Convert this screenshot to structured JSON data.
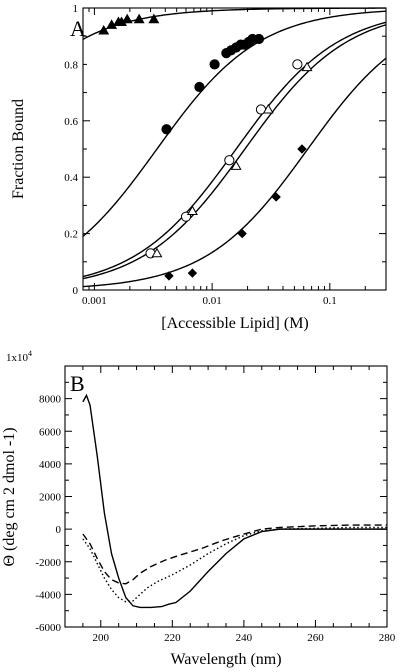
{
  "chart_data": [
    {
      "panel": "A",
      "type": "scatter",
      "xscale": "log",
      "xlim": [
        0.0008,
        0.3
      ],
      "ylim": [
        0,
        1
      ],
      "xlabel": "[Accessible Lipid] (M)",
      "ylabel": "Fraction Bound",
      "xticks": [
        {
          "value": 0.001,
          "label": "0.001"
        },
        {
          "value": 0.01,
          "label": "0.01"
        },
        {
          "value": 0.1,
          "label": "0.1"
        }
      ],
      "yticks": [
        {
          "value": 0,
          "label": "0"
        },
        {
          "value": 0.2,
          "label": "0.2"
        },
        {
          "value": 0.4,
          "label": "0.4"
        },
        {
          "value": 0.6,
          "label": "0.6"
        },
        {
          "value": 0.8,
          "label": "0.8"
        },
        {
          "value": 1,
          "label": "1"
        }
      ],
      "series": [
        {
          "marker": "triangle-filled",
          "points": [
            [
              0.0012,
              0.92
            ],
            [
              0.0014,
              0.94
            ],
            [
              0.0016,
              0.95
            ],
            [
              0.0017,
              0.95
            ],
            [
              0.0019,
              0.96
            ],
            [
              0.0024,
              0.96
            ],
            [
              0.0032,
              0.96
            ]
          ],
          "fit": {
            "kd": 0.0001,
            "scale": 1.0
          }
        },
        {
          "marker": "circle-filled",
          "points": [
            [
              0.0041,
              0.57
            ],
            [
              0.0078,
              0.72
            ],
            [
              0.0105,
              0.8
            ],
            [
              0.0132,
              0.84
            ],
            [
              0.0145,
              0.85
            ],
            [
              0.016,
              0.86
            ],
            [
              0.0175,
              0.87
            ],
            [
              0.019,
              0.87
            ],
            [
              0.0205,
              0.88
            ],
            [
              0.022,
              0.89
            ],
            [
              0.025,
              0.89
            ]
          ],
          "fit": {
            "kd": 0.0034,
            "scale": 1.0
          }
        },
        {
          "marker": "circle-open",
          "points": [
            [
              0.003,
              0.13
            ],
            [
              0.006,
              0.26
            ],
            [
              0.014,
              0.46
            ],
            [
              0.026,
              0.64
            ],
            [
              0.053,
              0.8
            ]
          ],
          "fit": {
            "kd": 0.016,
            "scale": 1.0
          }
        },
        {
          "marker": "triangle-open",
          "points": [
            [
              0.0034,
              0.13
            ],
            [
              0.0068,
              0.28
            ],
            [
              0.016,
              0.44
            ],
            [
              0.03,
              0.64
            ],
            [
              0.064,
              0.79
            ]
          ],
          "fit": {
            "kd": 0.019,
            "scale": 1.0
          }
        },
        {
          "marker": "diamond-filled",
          "points": [
            [
              0.0043,
              0.05
            ],
            [
              0.0068,
              0.06
            ],
            [
              0.018,
              0.2
            ],
            [
              0.035,
              0.33
            ],
            [
              0.058,
              0.5
            ]
          ],
          "fit": {
            "kd": 0.065,
            "scale": 1.0
          }
        }
      ]
    },
    {
      "panel": "B",
      "type": "line",
      "xlim": [
        190,
        280
      ],
      "ylim": [
        -6000,
        10000
      ],
      "xlabel": "Wavelength (nm)",
      "ylabel": "Θ (deg cm 2 dmol -1)",
      "y_exponent_label": "1x10",
      "y_exponent_power": "4",
      "xticks": [
        {
          "value": 200,
          "label": "200"
        },
        {
          "value": 220,
          "label": "220"
        },
        {
          "value": 240,
          "label": "240"
        },
        {
          "value": 260,
          "label": "260"
        },
        {
          "value": 280,
          "label": "280"
        }
      ],
      "yticks": [
        {
          "value": 8000,
          "label": "8000"
        },
        {
          "value": 6000,
          "label": "6000"
        },
        {
          "value": 4000,
          "label": "4000"
        },
        {
          "value": 2000,
          "label": "2000"
        },
        {
          "value": 0,
          "label": "0"
        },
        {
          "value": -2000,
          "label": "-2000"
        },
        {
          "value": -4000,
          "label": "-4000"
        },
        {
          "value": -6000,
          "label": "-6000"
        }
      ],
      "series": [
        {
          "style": "solid",
          "points": [
            [
              195,
              7800
            ],
            [
              196,
              8200
            ],
            [
              197,
              7600
            ],
            [
              199,
              4500
            ],
            [
              201,
              1000
            ],
            [
              203,
              -1500
            ],
            [
              205,
              -3000
            ],
            [
              207,
              -4200
            ],
            [
              209,
              -4700
            ],
            [
              211,
              -4800
            ],
            [
              214,
              -4800
            ],
            [
              217,
              -4750
            ],
            [
              219,
              -4600
            ],
            [
              221,
              -4500
            ],
            [
              225,
              -3800
            ],
            [
              230,
              -2600
            ],
            [
              235,
              -1500
            ],
            [
              240,
              -600
            ],
            [
              245,
              -150
            ],
            [
              250,
              0
            ],
            [
              260,
              0
            ],
            [
              270,
              0
            ],
            [
              280,
              0
            ]
          ]
        },
        {
          "style": "dashed",
          "points": [
            [
              195,
              -300
            ],
            [
              197,
              -900
            ],
            [
              199,
              -1800
            ],
            [
              201,
              -2600
            ],
            [
              203,
              -3100
            ],
            [
              205,
              -3300
            ],
            [
              207,
              -3350
            ],
            [
              209,
              -3100
            ],
            [
              211,
              -2700
            ],
            [
              214,
              -2300
            ],
            [
              218,
              -1900
            ],
            [
              222,
              -1600
            ],
            [
              228,
              -1200
            ],
            [
              234,
              -700
            ],
            [
              240,
              -300
            ],
            [
              245,
              0
            ],
            [
              250,
              100
            ],
            [
              260,
              200
            ],
            [
              270,
              250
            ],
            [
              280,
              250
            ]
          ]
        },
        {
          "style": "dotted",
          "points": [
            [
              195,
              -600
            ],
            [
              197,
              -1200
            ],
            [
              199,
              -2100
            ],
            [
              201,
              -3000
            ],
            [
              203,
              -3700
            ],
            [
              205,
              -4200
            ],
            [
              207,
              -4450
            ],
            [
              209,
              -4400
            ],
            [
              211,
              -4000
            ],
            [
              213,
              -3600
            ],
            [
              216,
              -3200
            ],
            [
              220,
              -2800
            ],
            [
              225,
              -2200
            ],
            [
              230,
              -1500
            ],
            [
              235,
              -900
            ],
            [
              240,
              -400
            ],
            [
              245,
              -100
            ],
            [
              250,
              0
            ],
            [
              260,
              50
            ],
            [
              270,
              100
            ],
            [
              280,
              100
            ]
          ]
        }
      ]
    }
  ]
}
